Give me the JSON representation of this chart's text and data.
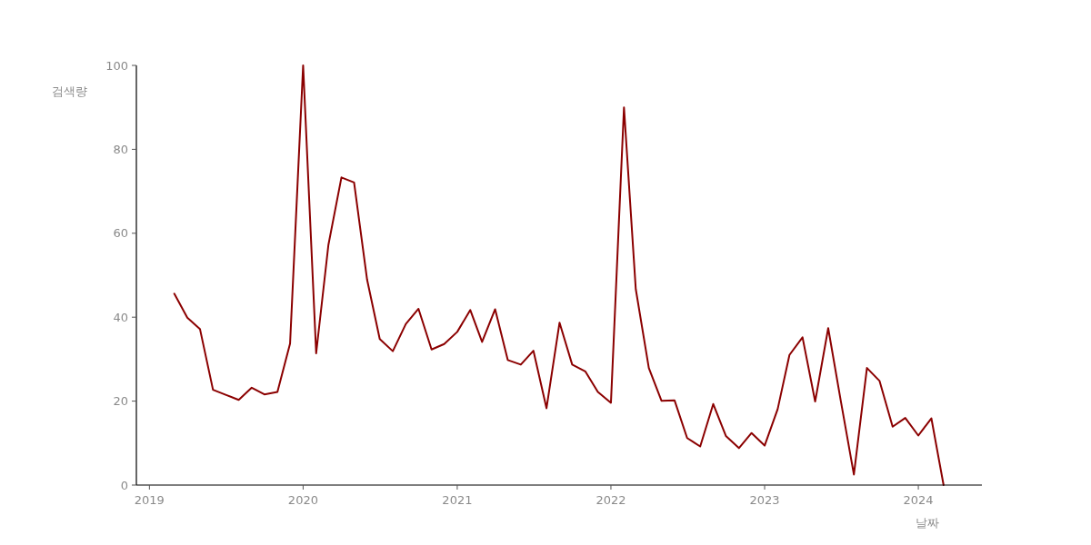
{
  "chart_data": {
    "type": "line",
    "xlabel": "날짜",
    "ylabel": "검색량",
    "x": [
      "2019-03",
      "2019-04",
      "2019-05",
      "2019-06",
      "2019-07",
      "2019-08",
      "2019-09",
      "2019-10",
      "2019-11",
      "2019-12",
      "2020-01",
      "2020-02",
      "2020-03",
      "2020-04",
      "2020-05",
      "2020-06",
      "2020-07",
      "2020-08",
      "2020-09",
      "2020-10",
      "2020-11",
      "2020-12",
      "2021-01",
      "2021-02",
      "2021-03",
      "2021-04",
      "2021-05",
      "2021-06",
      "2021-07",
      "2021-08",
      "2021-09",
      "2021-10",
      "2021-11",
      "2021-12",
      "2022-01",
      "2022-02",
      "2022-03",
      "2022-04",
      "2022-05",
      "2022-06",
      "2022-07",
      "2022-08",
      "2022-09",
      "2022-10",
      "2022-11",
      "2022-12",
      "2023-01",
      "2023-02",
      "2023-03",
      "2023-04",
      "2023-05",
      "2023-06",
      "2023-07",
      "2023-08",
      "2023-09",
      "2023-10",
      "2023-11",
      "2023-12",
      "2024-01",
      "2024-02",
      "2024-03"
    ],
    "series": [
      {
        "color": "#8b0000",
        "values": [
          45.6,
          39.9,
          37.2,
          22.7,
          21.5,
          20.3,
          23.2,
          21.6,
          22.2,
          33.7,
          100,
          31.4,
          57.2,
          73.3,
          72.1,
          48.9,
          34.8,
          31.9,
          38.4,
          42.0,
          32.3,
          33.6,
          36.5,
          41.7,
          34.1,
          41.9,
          29.8,
          28.7,
          32.0,
          18.3,
          38.7,
          28.7,
          27.1,
          22.2,
          19.6,
          90.0,
          46.7,
          27.9,
          20.1,
          20.2,
          11.2,
          9.2,
          19.3,
          11.7,
          8.8,
          12.4,
          9.4,
          18.1,
          31.0,
          35.2,
          19.9,
          37.4,
          20.0,
          2.5,
          27.9,
          24.8,
          13.9,
          16.0,
          11.8,
          15.9,
          0
        ]
      }
    ],
    "xlim": [
      "2018-12-01",
      "2024-05-31"
    ],
    "xticks": [
      {
        "value": "2019-01-01",
        "label": "2019"
      },
      {
        "value": "2020-01-01",
        "label": "2020"
      },
      {
        "value": "2021-01-01",
        "label": "2021"
      },
      {
        "value": "2022-01-01",
        "label": "2022"
      },
      {
        "value": "2023-01-01",
        "label": "2023"
      },
      {
        "value": "2024-01-01",
        "label": "2024"
      }
    ],
    "ylim": [
      0,
      100
    ],
    "yticks": [
      0,
      20,
      40,
      60,
      80,
      100
    ]
  }
}
